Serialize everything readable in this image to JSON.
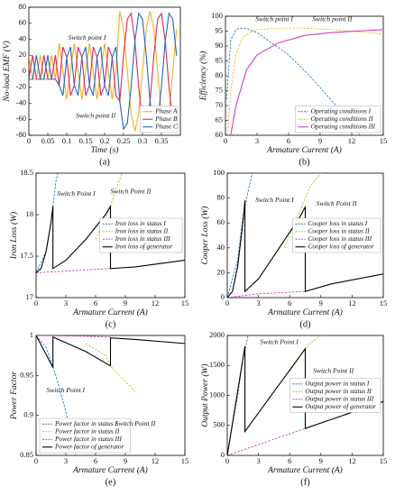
{
  "chart_data": [
    {
      "type": "line",
      "label": "(a)",
      "ylabel": "No-load EMF (V)",
      "xlabel": "Time (s)",
      "legend": "lower right",
      "annotations": [
        "Switch point I",
        "Switch point II"
      ],
      "xlim": [
        0,
        0.4
      ],
      "xticks": [
        0,
        0.05,
        0.1,
        0.15,
        0.2,
        0.25,
        0.3,
        0.35
      ],
      "ylim": [
        -80,
        80
      ],
      "yticks": [
        -80,
        -60,
        -40,
        -20,
        0,
        20,
        40,
        60,
        80
      ],
      "x": [
        0,
        0.01,
        0.02,
        0.03,
        0.04,
        0.05,
        0.06,
        0.07,
        0.08,
        0.09,
        0.1,
        0.11,
        0.12,
        0.13,
        0.14,
        0.15,
        0.16,
        0.17,
        0.18,
        0.19,
        0.2,
        0.21,
        0.22,
        0.23,
        0.24,
        0.25,
        0.26,
        0.27,
        0.28,
        0.29,
        0.3,
        0.31,
        0.32,
        0.33,
        0.34,
        0.35,
        0.36,
        0.37,
        0.38,
        0.39
      ],
      "series": [
        {
          "name": "Phase A",
          "color": "#f0b01e",
          "dash": false,
          "values": [
            20,
            -10,
            -10,
            20,
            -10,
            -10,
            20,
            -10,
            35,
            0,
            -35,
            0,
            35,
            0,
            -35,
            0,
            35,
            0,
            -35,
            0,
            35,
            0,
            -35,
            0,
            75,
            53,
            0,
            -53,
            -75,
            -53,
            0,
            53,
            75,
            53,
            0,
            -53,
            -75,
            -53,
            0,
            53
          ]
        },
        {
          "name": "Phase B",
          "color": "#e2245a",
          "dash": false,
          "values": [
            -10,
            20,
            -10,
            -10,
            20,
            -10,
            -10,
            20,
            -17.5,
            30.3,
            17.5,
            -30.3,
            -17.5,
            30.3,
            17.5,
            -30.3,
            -17.5,
            30.3,
            17.5,
            -30.3,
            -17.5,
            30.3,
            17.5,
            -30.3,
            -37.5,
            19.4,
            65,
            72.4,
            37.5,
            -19.4,
            -65,
            -72.4,
            -37.5,
            19.4,
            65,
            72.4,
            37.5,
            -19.4,
            -65,
            -72.4
          ]
        },
        {
          "name": "Phase C",
          "color": "#2166c0",
          "dash": false,
          "values": [
            -10,
            -10,
            20,
            -10,
            -10,
            20,
            -10,
            -10,
            -17.5,
            -30.3,
            17.5,
            30.3,
            -17.5,
            -30.3,
            17.5,
            30.3,
            -17.5,
            -30.3,
            17.5,
            30.3,
            -17.5,
            -30.3,
            17.5,
            30.3,
            -37.5,
            -72.4,
            -65,
            -19.4,
            37.5,
            72.4,
            65,
            19.4,
            -37.5,
            -72.4,
            -65,
            -19.4,
            37.5,
            72.4,
            65,
            19.4
          ]
        }
      ]
    },
    {
      "type": "line",
      "label": "(b)",
      "ylabel": "Efficiency (%)",
      "xlabel": "Armature Current (A)",
      "legend": "lower right",
      "annotations": [
        "Switch point I",
        "Switch point II"
      ],
      "xlim": [
        0,
        15
      ],
      "xticks": [
        0,
        3,
        6,
        9,
        12,
        15
      ],
      "ylim": [
        60,
        100
      ],
      "yticks": [
        60,
        65,
        70,
        75,
        80,
        85,
        90,
        95,
        100
      ],
      "series": [
        {
          "name": "Operating conditions I",
          "color": "#2b7bbf",
          "dash": true,
          "x": [
            0.1,
            0.5,
            1,
            1.5,
            2,
            3,
            4,
            6,
            8,
            10,
            12,
            12.8
          ],
          "values": [
            72,
            92,
            95.5,
            96,
            95.8,
            94.5,
            92,
            87,
            80,
            72,
            64,
            60
          ]
        },
        {
          "name": "Operating conditions II",
          "color": "#e8b93a",
          "dash": true,
          "x": [
            0.2,
            0.5,
            1,
            1.5,
            2,
            3,
            5,
            7.5,
            10,
            12,
            15
          ],
          "values": [
            60,
            75,
            87,
            92,
            94,
            95.5,
            96,
            96,
            95.5,
            95,
            94
          ]
        },
        {
          "name": "Operating conditions III",
          "color": "#d43fc0",
          "dash": false,
          "x": [
            0.5,
            1,
            2,
            3,
            5,
            7.5,
            10,
            15
          ],
          "values": [
            60,
            70,
            82,
            87,
            91,
            93.5,
            94.5,
            95.5
          ]
        }
      ]
    },
    {
      "type": "line",
      "label": "(c)",
      "ylabel": "Iron Loss (W)",
      "xlabel": "Armature Current (A)",
      "legend": "center right",
      "annotations": [
        "Switch Point I",
        "Switch Point II"
      ],
      "xlim": [
        0,
        15
      ],
      "xticks": [
        0,
        3,
        6,
        9,
        12,
        15
      ],
      "ylim": [
        17,
        18.5
      ],
      "yticks": [
        17,
        17.5,
        18,
        18.5
      ],
      "series": [
        {
          "name": "Iron loss in status I",
          "color": "#2b7bbf",
          "dash": true,
          "x": [
            0,
            1,
            1.5,
            2,
            2.2
          ],
          "values": [
            17.3,
            17.55,
            17.9,
            18.4,
            18.5
          ]
        },
        {
          "name": "Iron loss in status II",
          "color": "#c8c030",
          "dash": true,
          "x": [
            6,
            7,
            7.5,
            8,
            8.7
          ],
          "values": [
            17.7,
            17.95,
            18.1,
            18.3,
            18.5
          ]
        },
        {
          "name": "Iron loss in status III",
          "color": "#d43fc0",
          "dash": true,
          "x": [
            0,
            3,
            6,
            7.5
          ],
          "values": [
            17.3,
            17.32,
            17.34,
            17.35
          ]
        },
        {
          "name": "Iron loss of generator",
          "color": "#000000",
          "dash": false,
          "x": [
            0,
            0.5,
            1,
            1.5,
            1.7,
            1.7,
            3,
            5,
            7,
            7.5,
            7.5,
            10,
            15
          ],
          "values": [
            17.3,
            17.35,
            17.55,
            17.9,
            18.1,
            17.35,
            17.45,
            17.7,
            18,
            18.1,
            17.35,
            17.37,
            17.45
          ]
        }
      ]
    },
    {
      "type": "line",
      "label": "(d)",
      "ylabel": "Cooper Loss (W)",
      "xlabel": "Armature Current (A)",
      "legend": "center right",
      "annotations": [
        "Switch Point I",
        "Switch Point II"
      ],
      "xlim": [
        0,
        15
      ],
      "xticks": [
        0,
        3,
        6,
        9,
        12,
        15
      ],
      "ylim": [
        0,
        100
      ],
      "yticks": [
        0,
        20,
        40,
        60,
        80,
        100
      ],
      "series": [
        {
          "name": "Cooper loss in status I",
          "color": "#2b7bbf",
          "dash": true,
          "x": [
            0,
            1,
            1.5,
            2,
            2.4
          ],
          "values": [
            0,
            30,
            65,
            85,
            100
          ]
        },
        {
          "name": "Cooper loss in status II",
          "color": "#c8c030",
          "dash": true,
          "x": [
            5.5,
            7,
            7.5,
            8,
            9
          ],
          "values": [
            40,
            70,
            80,
            90,
            100
          ]
        },
        {
          "name": "Cooper loss in status III",
          "color": "#d43fc0",
          "dash": true,
          "x": [
            0,
            3,
            7.5
          ],
          "values": [
            0,
            3,
            5
          ]
        },
        {
          "name": "Cooper loss of generator",
          "color": "#000000",
          "dash": false,
          "x": [
            0,
            0.5,
            1,
            1.5,
            1.7,
            1.7,
            3,
            5,
            7,
            7.5,
            7.5,
            10,
            15
          ],
          "values": [
            0,
            5,
            25,
            60,
            78,
            5,
            15,
            40,
            65,
            73,
            5,
            11,
            19
          ]
        }
      ]
    },
    {
      "type": "line",
      "label": "(e)",
      "ylabel": "Power Factor",
      "xlabel": "Armature Current (A)",
      "legend": "lower left",
      "annotations": [
        "Switch Point I",
        "Switch Point II"
      ],
      "xlim": [
        0,
        15
      ],
      "xticks": [
        0,
        3,
        6,
        9,
        12,
        15
      ],
      "ylim": [
        0.85,
        1
      ],
      "yticks": [
        0.85,
        0.9,
        0.95,
        1
      ],
      "series": [
        {
          "name": "Power factor in status I",
          "color": "#2b7bbf",
          "dash": true,
          "x": [
            0,
            1,
            2,
            3,
            4
          ],
          "values": [
            1,
            0.985,
            0.95,
            0.905,
            0.85
          ]
        },
        {
          "name": "Power factor in status II",
          "color": "#c8c030",
          "dash": true,
          "x": [
            5,
            7,
            7.5,
            8,
            10
          ],
          "values": [
            0.99,
            0.975,
            0.962,
            0.955,
            0.93
          ]
        },
        {
          "name": "Power factor in status III",
          "color": "#d43fc0",
          "dash": true,
          "x": [
            0,
            5,
            7.5
          ],
          "values": [
            1,
            0.999,
            0.998
          ]
        },
        {
          "name": "Power factor of generator",
          "color": "#000000",
          "dash": false,
          "x": [
            0,
            1.7,
            1.7,
            5,
            7.5,
            7.5,
            10,
            15
          ],
          "values": [
            1,
            0.96,
            0.998,
            0.98,
            0.962,
            0.997,
            0.995,
            0.99
          ]
        }
      ]
    },
    {
      "type": "line",
      "label": "(f)",
      "ylabel": "Output Power (W)",
      "xlabel": "Armature Current (A)",
      "legend": "center right",
      "annotations": [
        "Switch Point I",
        "Switch Point II"
      ],
      "xlim": [
        0,
        15
      ],
      "xticks": [
        0,
        3,
        6,
        9,
        12,
        15
      ],
      "ylim": [
        0,
        2000
      ],
      "yticks": [
        0,
        500,
        1000,
        1500,
        2000
      ],
      "series": [
        {
          "name": "Output power in status I",
          "color": "#2b7bbf",
          "dash": true,
          "x": [
            0,
            1,
            1.5,
            2
          ],
          "values": [
            0,
            1000,
            1600,
            2000
          ]
        },
        {
          "name": "Output power in status II",
          "color": "#c8c030",
          "dash": true,
          "x": [
            6,
            7.5,
            8,
            9
          ],
          "values": [
            1400,
            1780,
            1880,
            2000
          ]
        },
        {
          "name": "Output power in status III",
          "color": "#d43fc0",
          "dash": true,
          "x": [
            0,
            3,
            6,
            7.5
          ],
          "values": [
            0,
            180,
            360,
            450
          ]
        },
        {
          "name": "Output power of generator",
          "color": "#000000",
          "dash": false,
          "x": [
            0,
            1.7,
            1.7,
            7.5,
            7.5,
            10,
            15
          ],
          "values": [
            0,
            1820,
            400,
            1780,
            450,
            600,
            900
          ]
        }
      ]
    }
  ]
}
